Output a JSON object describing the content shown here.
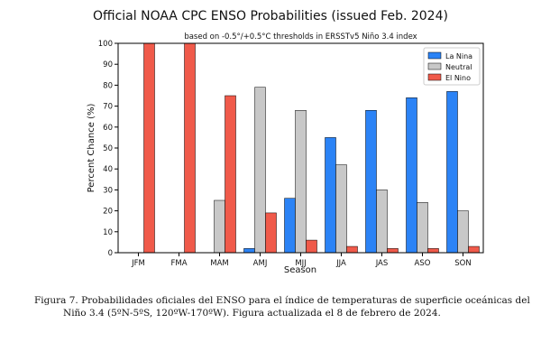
{
  "chart_data": {
    "type": "bar",
    "title": "Official NOAA CPC ENSO Probabilities (issued Feb. 2024)",
    "subtitle": "based on -0.5°/+0.5°C thresholds in ERSSTv5 Niño 3.4 index",
    "xlabel": "Season",
    "ylabel": "Percent Chance (%)",
    "ylim": [
      0,
      100
    ],
    "yticks": [
      0,
      10,
      20,
      30,
      40,
      50,
      60,
      70,
      80,
      90,
      100
    ],
    "grid": false,
    "legend_position": "top-right",
    "categories": [
      "JFM",
      "FMA",
      "MAM",
      "AMJ",
      "MJJ",
      "JJA",
      "JAS",
      "ASO",
      "SON"
    ],
    "series": [
      {
        "name": "La Nina",
        "color": "#2b83f6",
        "values": [
          0,
          0,
          0,
          2,
          26,
          55,
          68,
          74,
          77
        ]
      },
      {
        "name": "Neutral",
        "color": "#c8c8c8",
        "values": [
          0,
          0,
          25,
          79,
          68,
          42,
          30,
          24,
          20
        ]
      },
      {
        "name": "El Nino",
        "color": "#f05a4a",
        "values": [
          100,
          100,
          75,
          19,
          6,
          3,
          2,
          2,
          3
        ]
      }
    ]
  },
  "caption": {
    "line1": "Figura 7. Probabilidades oficiales del ENSO para el índice de temperaturas de superficie oceánicas del",
    "line2": "Niño 3.4 (5ºN-5ºS, 120ºW-170ºW). Figura actualizada el 8 de febrero de 2024."
  }
}
